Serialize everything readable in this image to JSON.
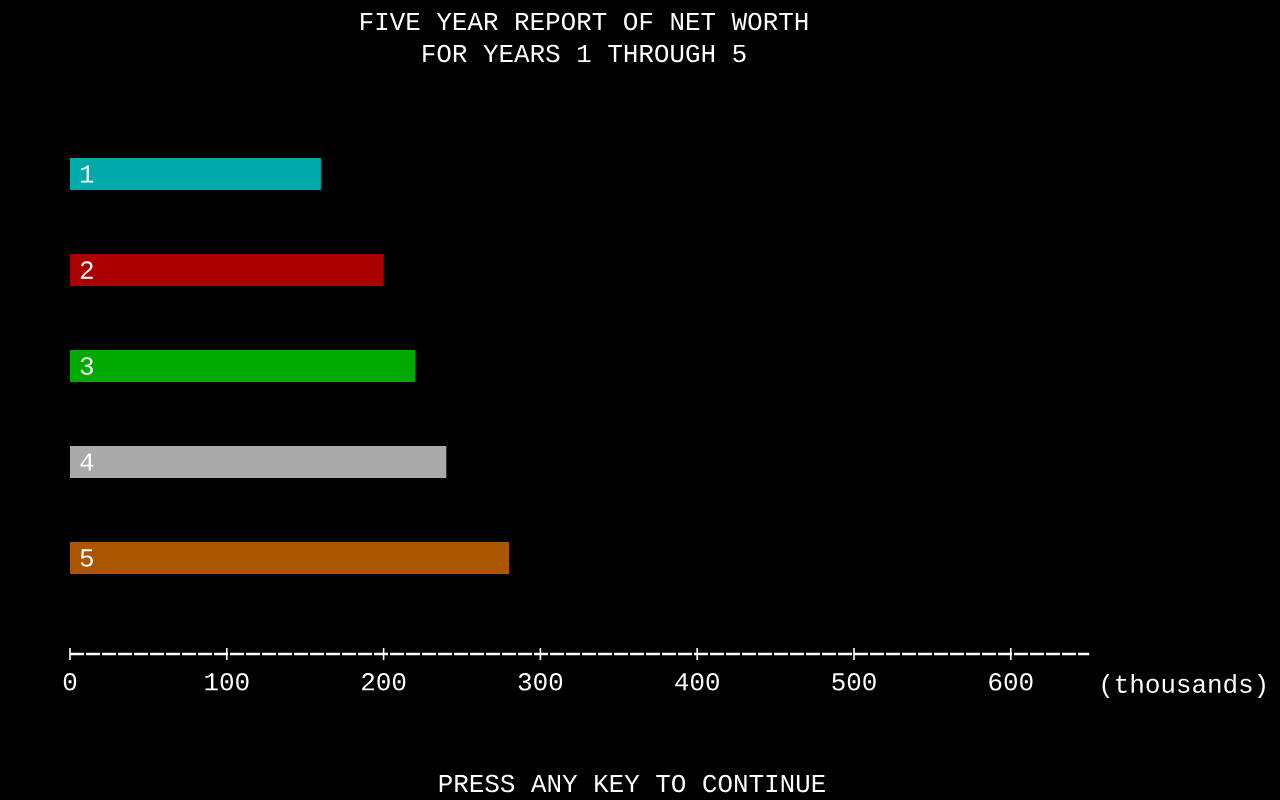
{
  "chart_data": {
    "type": "bar",
    "orientation": "horizontal",
    "title": "FIVE YEAR REPORT OF NET WORTH",
    "subtitle": "FOR YEARS 1 THROUGH 5",
    "categories": [
      "1",
      "2",
      "3",
      "4",
      "5"
    ],
    "values": [
      160,
      200,
      220,
      240,
      280
    ],
    "colors": [
      "#00aaaa",
      "#aa0000",
      "#00aa00",
      "#aaaaaa",
      "#aa5500"
    ],
    "xlim": [
      0,
      650
    ],
    "xticks": [
      0,
      100,
      200,
      300,
      400,
      500,
      600
    ],
    "xlabel": "(thousands)",
    "annotations": [
      "PRESS ANY KEY TO CONTINUE"
    ]
  }
}
